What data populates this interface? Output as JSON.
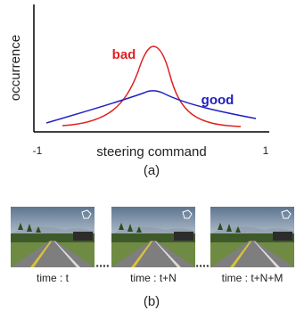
{
  "figure_a": {
    "y_label": "occurrence",
    "x_label": "steering command",
    "x_min": "-1",
    "x_max": "1",
    "curves": [
      {
        "label": "bad"
      },
      {
        "label": "good"
      }
    ],
    "caption": "(a)"
  },
  "figure_b": {
    "frames": [
      "time : t",
      "time : t+N",
      "time : t+N+M"
    ],
    "separators": [
      "....",
      "...."
    ],
    "caption": "(b)"
  }
}
